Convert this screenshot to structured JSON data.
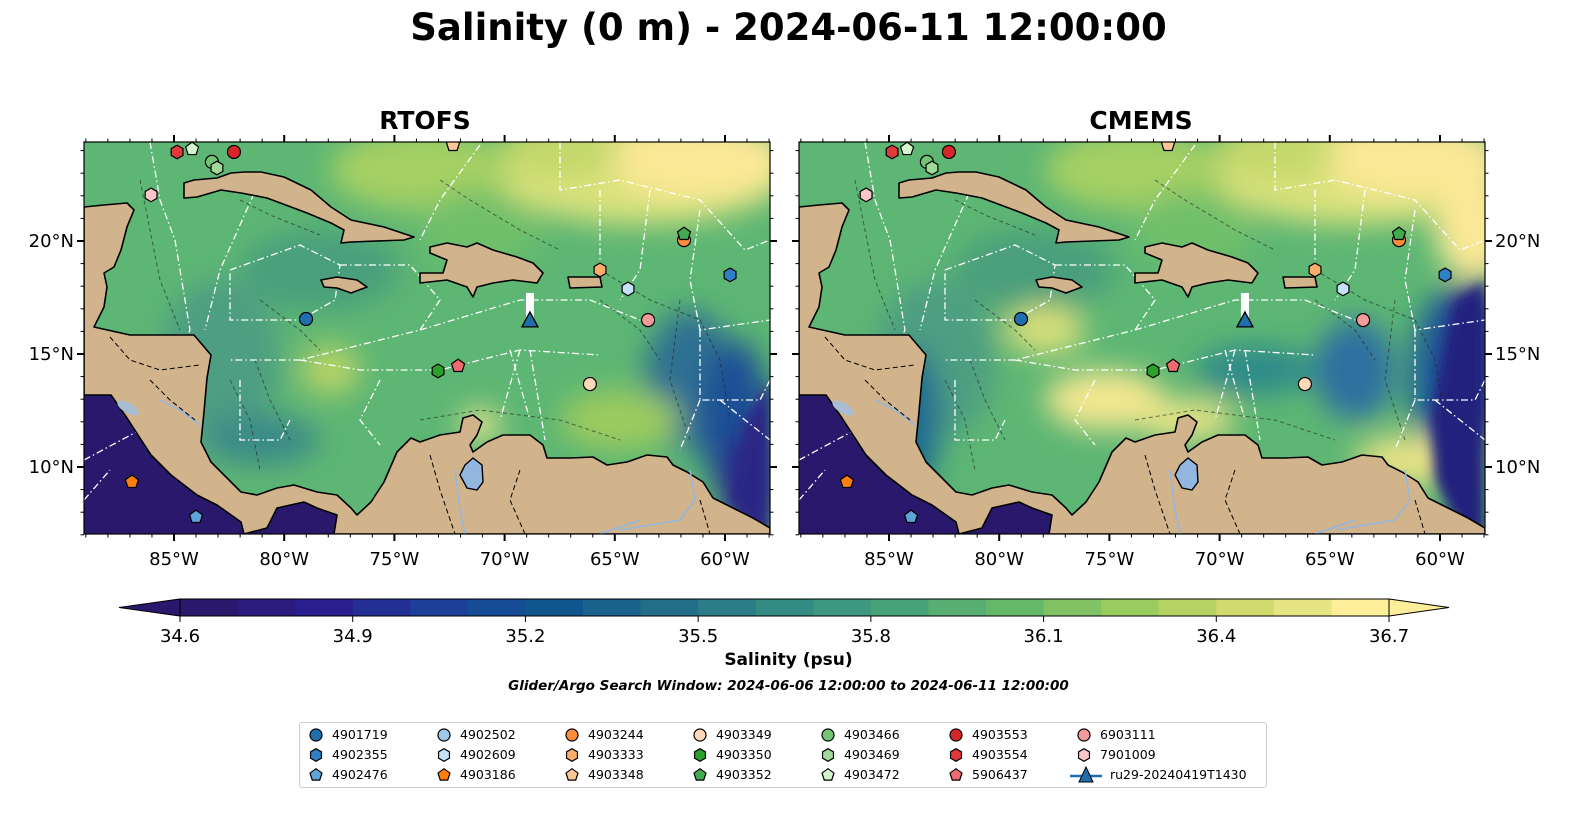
{
  "title": "Salinity (0 m) - 2024-06-11 12:00:00",
  "panels": [
    {
      "name": "RTOFS",
      "style": "rtofs"
    },
    {
      "name": "CMEMS",
      "style": "cmems"
    }
  ],
  "chart_data": {
    "type": "heatmap",
    "title": "Salinity (0 m) - 2024-06-11 12:00:00",
    "lon_range": [
      -89.1,
      -58.0
    ],
    "lat_range": [
      7.0,
      24.4
    ],
    "lon_ticks": [
      -85,
      -80,
      -75,
      -70,
      -65,
      -60
    ],
    "lon_tick_labels": [
      "85°W",
      "80°W",
      "75°W",
      "70°W",
      "65°W",
      "60°W"
    ],
    "lat_ticks": [
      10,
      15,
      20
    ],
    "lat_tick_labels": [
      "10°N",
      "15°N",
      "20°N"
    ],
    "colorbar": {
      "label": "Salinity (psu)",
      "min": 34.6,
      "max": 36.7,
      "step": 0.1,
      "extend": "both",
      "tick_labels": [
        "34.6",
        "34.9",
        "35.2",
        "35.5",
        "35.8",
        "36.1",
        "36.4",
        "36.7"
      ],
      "colormap_stops": [
        "#2a186c",
        "#2b1e8e",
        "#1c3f9a",
        "#0f568f",
        "#226e89",
        "#348b84",
        "#47a27a",
        "#66b869",
        "#9acb5e",
        "#cfdb6c",
        "#fdee99"
      ]
    },
    "subtitle": "Glider/Argo Search Window: 2024-06-06 12:00:00 to 2024-06-11 12:00:00",
    "platforms": [
      {
        "id": "4901719",
        "marker": "circle",
        "color": "#1f6fae",
        "lon": -79.01,
        "lat": 16.55
      },
      {
        "id": "4902355",
        "marker": "hexagon",
        "color": "#2f80c4",
        "lon": -59.77,
        "lat": 18.5
      },
      {
        "id": "4902476",
        "marker": "pentagon",
        "color": "#5ea3d9",
        "lon": -84.0,
        "lat": 7.79
      },
      {
        "id": "4902502",
        "marker": "circle",
        "color": "#9ecae9",
        "lon": null,
        "lat": null
      },
      {
        "id": "4902609",
        "marker": "hexagon",
        "color": "#c6e2fa",
        "lon": -64.4,
        "lat": 17.88
      },
      {
        "id": "4903186",
        "marker": "pentagon",
        "color": "#ff7f0e",
        "lon": -86.91,
        "lat": 9.34
      },
      {
        "id": "4903244",
        "marker": "circle",
        "color": "#fd8d3c",
        "lon": -61.86,
        "lat": 20.04
      },
      {
        "id": "4903333",
        "marker": "hexagon",
        "color": "#fdae6b",
        "lon": -65.67,
        "lat": 18.72
      },
      {
        "id": "4903348",
        "marker": "pentagon",
        "color": "#fdc796",
        "lon": -72.34,
        "lat": 24.25
      },
      {
        "id": "4903349",
        "marker": "circle",
        "color": "#fdd9b9",
        "lon": -66.13,
        "lat": 13.67
      },
      {
        "id": "4903350",
        "marker": "hexagon",
        "color": "#2ca02c",
        "lon": -73.02,
        "lat": 14.25
      },
      {
        "id": "4903352",
        "marker": "pentagon",
        "color": "#41ab4d",
        "lon": -61.86,
        "lat": 20.31
      },
      {
        "id": "4903466",
        "marker": "circle",
        "color": "#74c476",
        "lon": -83.28,
        "lat": 23.5
      },
      {
        "id": "4903469",
        "marker": "hexagon",
        "color": "#a1d99b",
        "lon": -83.05,
        "lat": 23.23
      },
      {
        "id": "4903472",
        "marker": "pentagon",
        "color": "#d2f5cc",
        "lon": -84.18,
        "lat": 24.07
      },
      {
        "id": "4903553",
        "marker": "circle",
        "color": "#d62728",
        "lon": -82.28,
        "lat": 23.94
      },
      {
        "id": "4903554",
        "marker": "hexagon",
        "color": "#e0393a",
        "lon": -84.86,
        "lat": 23.94
      },
      {
        "id": "5906437",
        "marker": "pentagon",
        "color": "#ee6b6e",
        "lon": -72.11,
        "lat": 14.47
      },
      {
        "id": "6903111",
        "marker": "circle",
        "color": "#f39a9a",
        "lon": -63.49,
        "lat": 16.5
      },
      {
        "id": "7901009",
        "marker": "hexagon",
        "color": "#fcc5c9",
        "lon": -86.04,
        "lat": 22.04
      },
      {
        "id": "ru29-20240419T1430",
        "marker": "triangle",
        "color": "#1f6fae",
        "lon": -68.85,
        "lat": 16.42,
        "track_start_lat": 17.7
      }
    ]
  }
}
